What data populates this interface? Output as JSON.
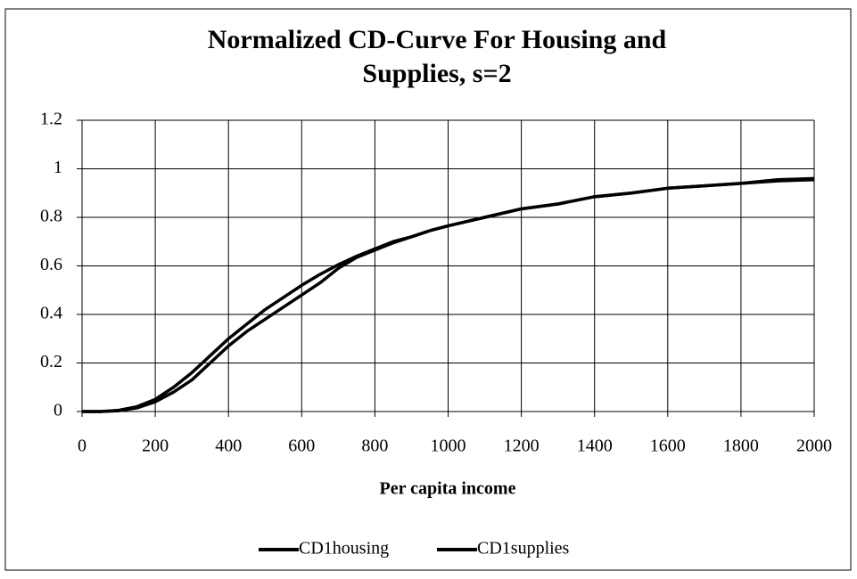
{
  "chart_data": {
    "type": "line",
    "title": "Normalized CD-Curve For Housing and Supplies, s=2",
    "x_label": "Per capita income",
    "x": [
      0,
      50,
      100,
      150,
      200,
      250,
      300,
      350,
      400,
      450,
      500,
      550,
      600,
      650,
      700,
      750,
      800,
      850,
      900,
      950,
      1000,
      1100,
      1200,
      1300,
      1400,
      1500,
      1600,
      1700,
      1800,
      1900,
      2000
    ],
    "series": [
      {
        "name": "CD1housing",
        "color": "#000000",
        "values": [
          0,
          0,
          0.005,
          0.02,
          0.05,
          0.1,
          0.16,
          0.23,
          0.3,
          0.36,
          0.42,
          0.47,
          0.52,
          0.565,
          0.605,
          0.64,
          0.67,
          0.7,
          0.72,
          0.745,
          0.765,
          0.8,
          0.835,
          0.855,
          0.885,
          0.9,
          0.92,
          0.93,
          0.94,
          0.95,
          0.955
        ]
      },
      {
        "name": "CD1supplies",
        "color": "#000000",
        "values": [
          0,
          0,
          0.003,
          0.015,
          0.04,
          0.08,
          0.13,
          0.2,
          0.27,
          0.33,
          0.38,
          0.43,
          0.48,
          0.53,
          0.59,
          0.635,
          0.665,
          0.695,
          0.72,
          0.745,
          0.765,
          0.8,
          0.835,
          0.855,
          0.885,
          0.9,
          0.92,
          0.93,
          0.94,
          0.955,
          0.96
        ]
      }
    ],
    "xlim": [
      0,
      2000
    ],
    "xticks": [
      0,
      200,
      400,
      600,
      800,
      1000,
      1200,
      1400,
      1600,
      1800,
      2000
    ],
    "ylim": [
      0,
      1.2
    ],
    "yticks": [
      0,
      0.2,
      0.4,
      0.6,
      0.8,
      1,
      1.2
    ],
    "grid": true,
    "legend": "bottom"
  }
}
